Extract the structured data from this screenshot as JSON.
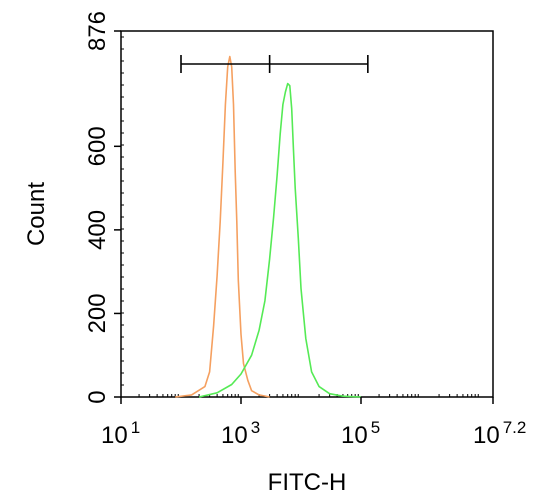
{
  "chart_data": {
    "type": "line",
    "title": "",
    "xlabel": "FITC-H",
    "ylabel": "Count",
    "xscale": "log",
    "xlim": [
      10,
      15848932
    ],
    "ylim": [
      0,
      876
    ],
    "x_ticks": [
      {
        "base": "10",
        "exp": "1",
        "value": 10
      },
      {
        "base": "10",
        "exp": "3",
        "value": 1000
      },
      {
        "base": "10",
        "exp": "5",
        "value": 100000
      },
      {
        "base": "10",
        "exp": "7.2",
        "value": 15848932
      }
    ],
    "y_ticks": [
      {
        "label": "0",
        "value": 0
      },
      {
        "label": "200",
        "value": 200
      },
      {
        "label": "400",
        "value": 400
      },
      {
        "label": "600",
        "value": 600
      },
      {
        "label": "876",
        "value": 876
      }
    ],
    "grid": false,
    "legend": "none",
    "gates": {
      "marker_x": [
        100,
        3000,
        130000
      ],
      "marker_y": 797
    },
    "series": [
      {
        "color": "#f5a060",
        "x": [
          80,
          150,
          250,
          300,
          350,
          400,
          450,
          500,
          550,
          600,
          650,
          700,
          750,
          800,
          850,
          900,
          1000,
          1100,
          1300,
          1500,
          2000,
          3000
        ],
        "y": [
          0,
          5,
          25,
          60,
          170,
          290,
          420,
          560,
          700,
          790,
          815,
          790,
          700,
          540,
          420,
          280,
          150,
          80,
          40,
          15,
          5,
          0
        ]
      },
      {
        "color": "#55ea55",
        "x": [
          200,
          400,
          700,
          1000,
          1500,
          2000,
          2500,
          3000,
          3500,
          4000,
          4500,
          5000,
          5500,
          6000,
          6500,
          7000,
          7500,
          8000,
          9000,
          10000,
          12000,
          15000,
          20000,
          30000,
          50000,
          100000
        ],
        "y": [
          0,
          10,
          30,
          55,
          100,
          160,
          230,
          330,
          430,
          530,
          630,
          700,
          730,
          750,
          745,
          690,
          590,
          500,
          380,
          260,
          140,
          60,
          25,
          8,
          2,
          0
        ]
      }
    ]
  }
}
